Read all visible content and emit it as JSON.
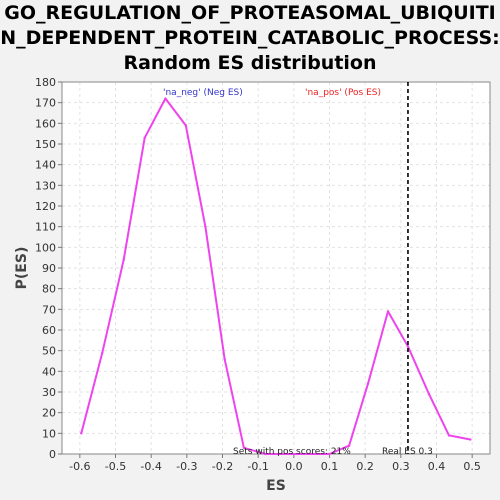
{
  "title_lines": [
    "GO_REGULATION_OF_PROTEASOMAL_UBIQUITI",
    "N_DEPENDENT_PROTEIN_CATABOLIC_PROCESS:",
    "Random ES distribution"
  ],
  "chart_data": {
    "type": "line",
    "xlabel": "ES",
    "ylabel": "P(ES)",
    "xlim": [
      -0.65,
      0.55
    ],
    "ylim": [
      0,
      180
    ],
    "xticks": [
      -0.6,
      -0.5,
      -0.4,
      -0.3,
      -0.2,
      -0.1,
      0.0,
      0.1,
      0.2,
      0.3,
      0.4,
      0.5
    ],
    "xtick_labels": [
      "-0.6",
      "-0.5",
      "-0.4",
      "-0.3",
      "-0.2",
      "-0.1",
      "0.0",
      "0.1",
      "0.2",
      "0.3",
      "0.4",
      "0.5"
    ],
    "yticks": [
      0,
      10,
      20,
      30,
      40,
      50,
      60,
      70,
      80,
      90,
      100,
      110,
      120,
      130,
      140,
      150,
      160,
      170,
      180
    ],
    "grid": true,
    "series": [
      {
        "color": "#ee44ee",
        "x": [
          -0.596,
          -0.537,
          -0.477,
          -0.418,
          -0.36,
          -0.303,
          -0.248,
          -0.194,
          -0.14,
          -0.08,
          0.1,
          0.155,
          0.208,
          0.264,
          0.32,
          0.379,
          0.435,
          0.495
        ],
        "y": [
          10,
          49,
          94,
          153,
          172,
          159,
          110,
          46,
          3,
          0,
          0,
          4,
          34,
          69,
          52,
          29,
          9,
          7
        ]
      }
    ],
    "reference_line": {
      "x": 0.32,
      "style": "dashed",
      "color": "#000000"
    },
    "annotations": {
      "neg_legend": "'na_neg' (Neg ES)",
      "pos_legend": "'na_pos' (Pos ES)",
      "neg_legend_color": "#3333cc",
      "pos_legend_color": "#ee2222",
      "pos_scores": "Sets with pos scores: 21%",
      "real_es": "Real ES 0.3"
    }
  }
}
